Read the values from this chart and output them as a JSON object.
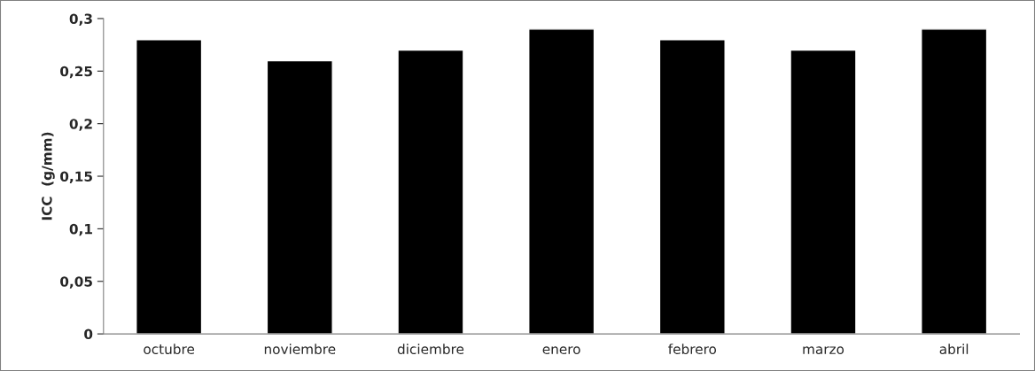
{
  "chart_data": {
    "type": "bar",
    "ylabel": "ICC  (g/mm)",
    "categories": [
      "octubre",
      "noviembre",
      "diciembre",
      "enero",
      "febrero",
      "marzo",
      "abril"
    ],
    "values": [
      0.28,
      0.26,
      0.27,
      0.29,
      0.28,
      0.27,
      0.29
    ],
    "color": "#000000",
    "ylim": [
      0,
      0.3
    ],
    "yticks": [
      0,
      {
        "value": 0.05,
        "label": "0,05"
      },
      {
        "value": 0.1,
        "label": "0,1"
      },
      {
        "value": 0.15,
        "label": "0,15"
      },
      {
        "value": 0.2,
        "label": "0,2"
      },
      {
        "value": 0.25,
        "label": "0,25"
      },
      {
        "value": 0.3,
        "label": "0,3"
      }
    ],
    "grid": false,
    "legend": false
  }
}
